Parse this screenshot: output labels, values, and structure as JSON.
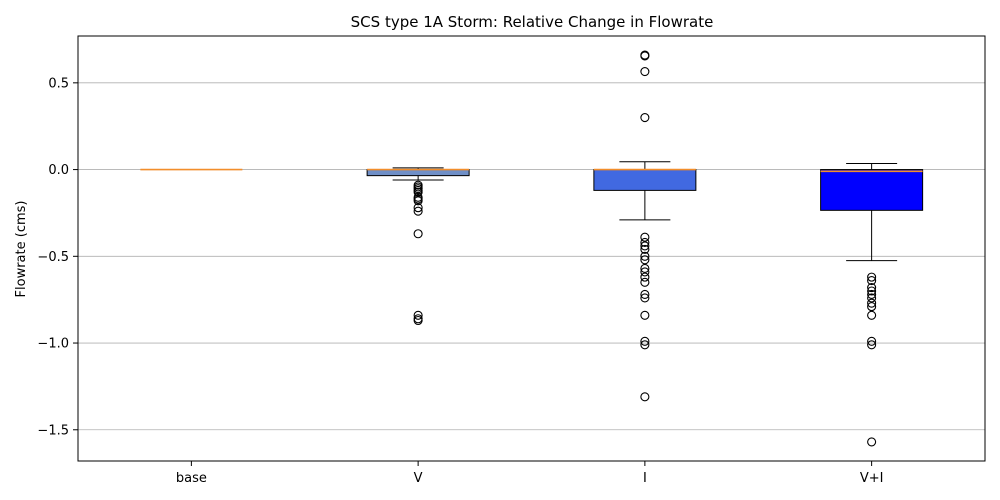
{
  "chart_data": {
    "type": "box",
    "title": "SCS type 1A Storm: Relative Change in Flowrate",
    "xlabel": "",
    "ylabel": "Flowrate (cms)",
    "categories": [
      "base",
      "V",
      "I",
      "V+I"
    ],
    "ylim": [
      -1.68,
      0.77
    ],
    "yticks": [
      0.5,
      0.0,
      -0.5,
      -1.0,
      -1.5
    ],
    "ytick_labels": [
      "0.5",
      "0.0",
      "−0.5",
      "−1.0",
      "−1.5"
    ],
    "grid": "y",
    "median_color": "#f28e2b",
    "series": [
      {
        "category": "base",
        "color": "#f28e2b",
        "whisker_low": 0.0,
        "q1": 0.0,
        "median": 0.0,
        "q3": 0.0,
        "whisker_high": 0.0,
        "outliers": []
      },
      {
        "category": "V",
        "color": "#6f8fc7",
        "whisker_low": -0.06,
        "q1": -0.035,
        "median": 0.0,
        "q3": 0.0,
        "whisker_high": 0.01,
        "outliers": [
          -0.09,
          -0.1,
          -0.11,
          -0.12,
          -0.13,
          -0.16,
          -0.17,
          -0.18,
          -0.22,
          -0.24,
          -0.37,
          -0.84,
          -0.86,
          -0.87
        ]
      },
      {
        "category": "I",
        "color": "#4169e1",
        "whisker_low": -0.29,
        "q1": -0.12,
        "median": 0.0,
        "q3": 0.0,
        "whisker_high": 0.045,
        "outliers": [
          0.66,
          0.655,
          0.565,
          0.3,
          -0.39,
          -0.42,
          -0.44,
          -0.46,
          -0.5,
          -0.52,
          -0.57,
          -0.59,
          -0.62,
          -0.65,
          -0.72,
          -0.74,
          -0.84,
          -0.99,
          -1.01,
          -1.31
        ]
      },
      {
        "category": "V+I",
        "color": "#0000ff",
        "whisker_low": -0.525,
        "q1": -0.235,
        "median": -0.01,
        "q3": 0.0,
        "whisker_high": 0.035,
        "outliers": [
          -0.62,
          -0.64,
          -0.68,
          -0.7,
          -0.72,
          -0.74,
          -0.77,
          -0.79,
          -0.84,
          -0.99,
          -1.01,
          -1.57
        ]
      }
    ]
  }
}
